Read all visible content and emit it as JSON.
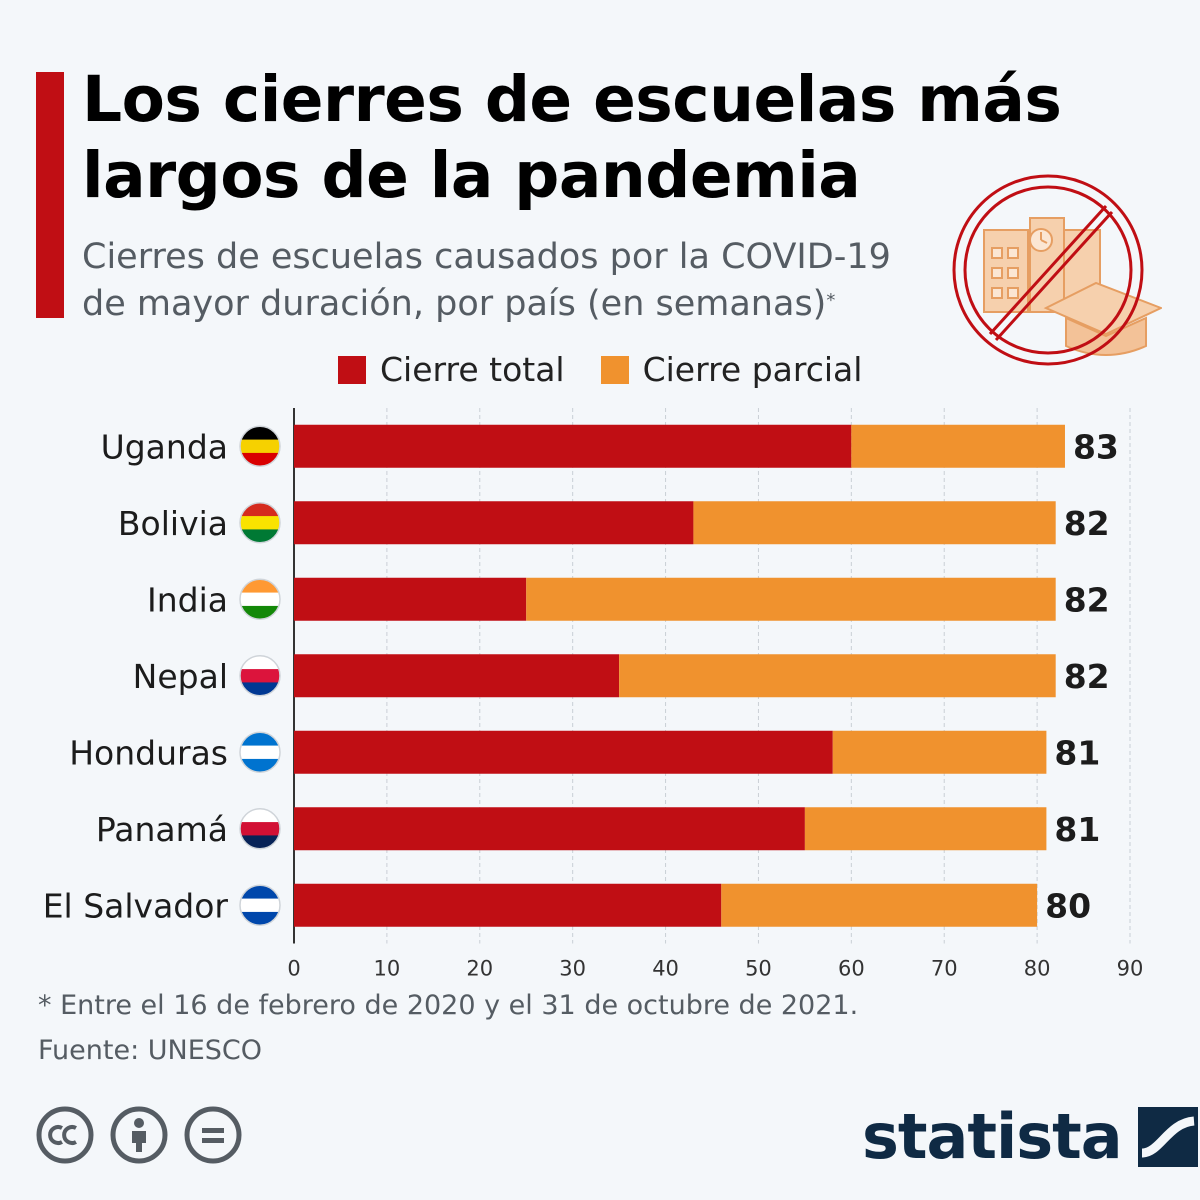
{
  "title": "Los cierres de escuelas más largos de la pandemia",
  "subtitle": "Cierres de escuelas causados por la COVID-19 de mayor duración, por país (en semanas)",
  "subtitle_marker": "*",
  "legend": [
    {
      "label": "Cierre total",
      "color": "#c00e14"
    },
    {
      "label": "Cierre parcial",
      "color": "#f0922e"
    }
  ],
  "footnote": "* Entre el 16 de febrero de 2020 y el 31 de octubre de 2021.",
  "source": "Fuente: UNESCO",
  "brand": "statista",
  "chart_data": {
    "type": "bar",
    "orientation": "horizontal",
    "stacked": true,
    "categories": [
      "Uganda",
      "Bolivia",
      "India",
      "Nepal",
      "Honduras",
      "Panamá",
      "El Salvador"
    ],
    "series": [
      {
        "name": "Cierre total",
        "color": "#c00e14",
        "values": [
          60,
          43,
          25,
          35,
          58,
          55,
          46
        ]
      },
      {
        "name": "Cierre parcial",
        "color": "#f0922e",
        "values": [
          23,
          39,
          57,
          47,
          23,
          26,
          34
        ]
      }
    ],
    "totals": [
      83,
      82,
      82,
      82,
      81,
      81,
      80
    ],
    "xlim": [
      0,
      90
    ],
    "xticks": [
      0,
      10,
      20,
      30,
      40,
      50,
      60,
      70,
      80,
      90
    ],
    "grid": true,
    "flags": [
      "uganda-flag-icon",
      "bolivia-flag-icon",
      "india-flag-icon",
      "nepal-flag-icon",
      "honduras-flag-icon",
      "panama-flag-icon",
      "el-salvador-flag-icon"
    ]
  }
}
